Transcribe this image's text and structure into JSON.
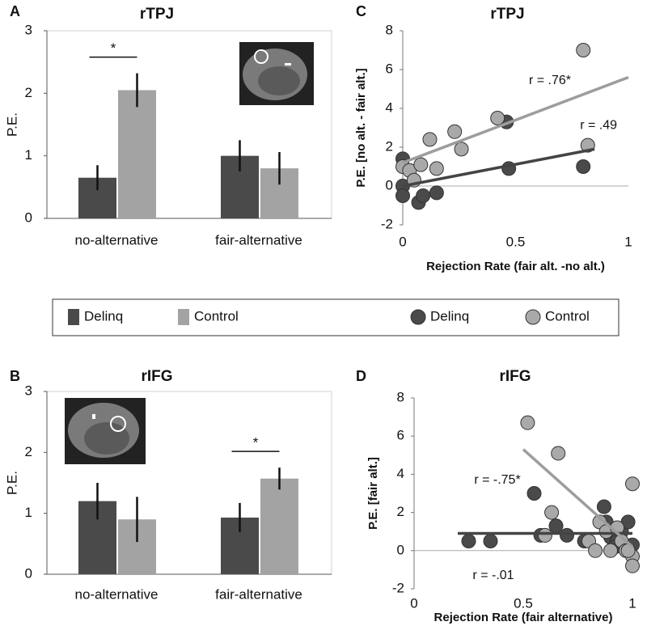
{
  "chart_data": [
    {
      "type": "bar",
      "panel_label": "A",
      "title": "rTPJ",
      "ylabel": "P.E.",
      "categories": [
        "no-alternative",
        "fair-alternative"
      ],
      "series": [
        {
          "name": "Delinq",
          "color": "#4a4a4a",
          "values": [
            0.65,
            1.0
          ],
          "errors": [
            0.2,
            0.25
          ]
        },
        {
          "name": "Control",
          "color": "#a3a3a3",
          "values": [
            2.05,
            0.8
          ],
          "errors": [
            0.27,
            0.26
          ]
        }
      ],
      "ylim": [
        0,
        3
      ],
      "yticks": [
        0,
        1,
        2,
        3
      ],
      "significance": [
        {
          "text": "*",
          "category": "no-alternative"
        }
      ]
    },
    {
      "type": "bar",
      "panel_label": "B",
      "title": "rIFG",
      "ylabel": "P.E.",
      "categories": [
        "no-alternative",
        "fair-alternative"
      ],
      "series": [
        {
          "name": "Delinq",
          "color": "#4a4a4a",
          "values": [
            1.2,
            0.93
          ],
          "errors": [
            0.3,
            0.24
          ]
        },
        {
          "name": "Control",
          "color": "#a3a3a3",
          "values": [
            0.9,
            1.57
          ],
          "errors": [
            0.37,
            0.18
          ]
        }
      ],
      "ylim": [
        0,
        3
      ],
      "yticks": [
        0,
        1,
        2,
        3
      ],
      "significance": [
        {
          "text": "*",
          "category": "fair-alternative"
        }
      ]
    },
    {
      "type": "scatter",
      "panel_label": "C",
      "title": "rTPJ",
      "ylabel": "P.E. [no alt. - fair alt.]",
      "xlabel": "Rejection Rate (fair alt. -no alt.)",
      "xlim": [
        0,
        1
      ],
      "xticks": [
        0,
        0.5,
        1
      ],
      "ylim": [
        -2,
        8
      ],
      "yticks": [
        -2,
        0,
        2,
        4,
        6,
        8
      ],
      "series": [
        {
          "name": "Delinq",
          "color": "#4a4a4a",
          "x": [
            0.0,
            0.0,
            0.0,
            0.07,
            0.09,
            0.15,
            0.46,
            0.47,
            0.8
          ],
          "y": [
            1.4,
            0.0,
            -0.5,
            -0.85,
            -0.5,
            -0.35,
            3.3,
            0.9,
            1.0
          ],
          "fit": {
            "x": [
              0,
              0.85
            ],
            "y": [
              0.0,
              1.9
            ],
            "label": "r = .49"
          }
        },
        {
          "name": "Control",
          "color": "#a9a9a9",
          "x": [
            0.0,
            0.03,
            0.05,
            0.08,
            0.12,
            0.15,
            0.23,
            0.26,
            0.42,
            0.8,
            0.82
          ],
          "y": [
            1.0,
            0.8,
            0.3,
            1.1,
            2.4,
            0.9,
            2.8,
            1.9,
            3.5,
            7.0,
            2.1
          ],
          "fit": {
            "x": [
              0,
              1
            ],
            "y": [
              1.2,
              5.6
            ],
            "label": "r = .76*"
          }
        }
      ]
    },
    {
      "type": "scatter",
      "panel_label": "D",
      "title": "rIFG",
      "ylabel": "P.E. [fair alt.]",
      "xlabel": "Rejection Rate (fair alternative)",
      "xlim": [
        0,
        1
      ],
      "xticks": [
        0,
        0.5,
        1
      ],
      "ylim": [
        -2,
        8
      ],
      "yticks": [
        -2,
        0,
        2,
        4,
        6,
        8
      ],
      "series": [
        {
          "name": "Delinq",
          "color": "#4a4a4a",
          "x": [
            0.25,
            0.35,
            0.55,
            0.58,
            0.65,
            0.7,
            0.78,
            0.87,
            0.88,
            0.9,
            0.93,
            0.95,
            0.98,
            1.0,
            0.92
          ],
          "y": [
            0.5,
            0.5,
            3.0,
            0.8,
            1.3,
            0.8,
            0.5,
            2.3,
            1.5,
            0.7,
            0.5,
            1.0,
            1.5,
            0.3,
            0.2
          ],
          "fit": {
            "x": [
              0.2,
              1
            ],
            "y": [
              0.9,
              0.9
            ],
            "label": "r = -.01"
          }
        },
        {
          "name": "Control",
          "color": "#a9a9a9",
          "x": [
            0.52,
            0.66,
            0.63,
            0.6,
            0.8,
            0.85,
            0.88,
            0.9,
            0.93,
            0.95,
            0.97,
            1.0,
            1.0,
            1.0,
            0.83,
            0.98
          ],
          "y": [
            6.7,
            5.1,
            2.0,
            0.8,
            0.5,
            1.5,
            1.0,
            0.0,
            1.2,
            0.5,
            0.0,
            3.5,
            -0.3,
            -0.8,
            0.0,
            0.0
          ],
          "fit": {
            "x": [
              0.5,
              1
            ],
            "y": [
              5.3,
              0.2
            ],
            "label": "r = -.75*"
          }
        }
      ]
    }
  ]
}
